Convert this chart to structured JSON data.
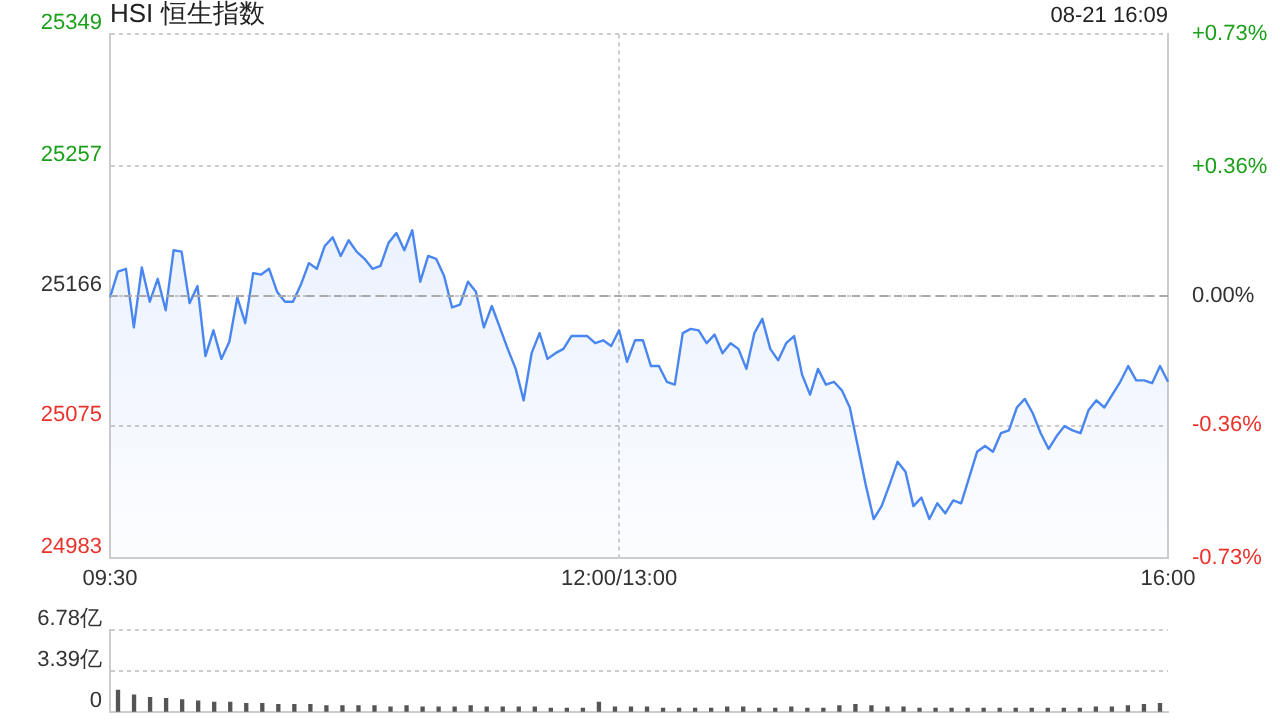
{
  "chart_data": [
    {
      "type": "area",
      "title": "HSI 恒生指数",
      "subtitle": "08-21 16:09",
      "categories": [
        "09:30",
        null,
        null,
        null,
        null,
        null,
        null,
        null,
        null,
        null,
        null,
        null,
        null,
        null,
        null,
        null,
        null,
        null,
        null,
        null,
        null,
        null,
        null,
        null,
        null,
        null,
        null,
        null,
        null,
        null,
        null,
        null,
        null,
        null,
        null,
        null,
        null,
        null,
        null,
        null,
        null,
        null,
        null,
        null,
        null,
        null,
        null,
        null,
        null,
        null,
        null,
        null,
        null,
        null,
        null,
        null,
        null,
        null,
        null,
        null,
        null,
        null,
        null,
        null,
        "12:00/13:00",
        null,
        null,
        null,
        null,
        null,
        null,
        null,
        null,
        null,
        null,
        null,
        null,
        null,
        null,
        null,
        null,
        null,
        null,
        null,
        null,
        null,
        null,
        null,
        null,
        null,
        null,
        null,
        null,
        null,
        null,
        null,
        null,
        null,
        null,
        null,
        null,
        null,
        null,
        null,
        null,
        null,
        null,
        null,
        null,
        null,
        null,
        null,
        null,
        null,
        null,
        null,
        null,
        null,
        null,
        null,
        null,
        null,
        null,
        null,
        null,
        null,
        null,
        null,
        null,
        null,
        null,
        null,
        null,
        "16:00"
      ],
      "series": [
        {
          "color": "#4a86f0",
          "values": [
            25165,
            25183,
            25185,
            25144,
            25186,
            25162,
            25178,
            25156,
            25198,
            25197,
            25161,
            25173,
            25124,
            25142,
            25122,
            25134,
            25165,
            25147,
            25182,
            25181,
            25185,
            25169,
            25162,
            25162,
            25174,
            25189,
            25185,
            25201,
            25207,
            25194,
            25205,
            25197,
            25192,
            25185,
            25187,
            25203,
            25210,
            25198,
            25212,
            25176,
            25194,
            25192,
            25180,
            25158,
            25160,
            25176,
            25169,
            25144,
            25159,
            25144,
            25129,
            25115,
            25093,
            25126,
            25140,
            25122,
            25126,
            25129,
            25138,
            25138,
            25138,
            25133,
            25135,
            25131,
            25142,
            25120,
            25135,
            25135,
            25117,
            25117,
            25106,
            25104,
            25140,
            25143,
            25142,
            25133,
            25139,
            25126,
            25133,
            25129,
            25115,
            25140,
            25150,
            25129,
            25121,
            25133,
            25138,
            25111,
            25097,
            25115,
            25104,
            25106,
            25100,
            25088,
            25061,
            25034,
            25010,
            25019,
            25034,
            25050,
            25043,
            25019,
            25025,
            25010,
            25021,
            25014,
            25023,
            25021,
            25039,
            25057,
            25061,
            25057,
            25070,
            25072,
            25088,
            25094,
            25084,
            25070,
            25059,
            25068,
            25075,
            25072,
            25070,
            25086,
            25093,
            25088,
            25097,
            25106,
            25117,
            25107,
            25107,
            25105,
            25117,
            25106
          ]
        }
      ],
      "ylim": [
        24983,
        25349
      ],
      "yticks": [
        24983,
        25075,
        25166,
        25257,
        25349
      ],
      "y2lim": [
        -0.73,
        0.73
      ],
      "y2ticks": [
        {
          "value": -0.73,
          "label": "-0.73%"
        },
        {
          "value": -0.36,
          "label": "-0.36%"
        },
        {
          "value": 0,
          "label": "0.00%"
        },
        {
          "value": 0.36,
          "label": "+0.36%"
        },
        {
          "value": 0.73,
          "label": "+0.73%"
        }
      ],
      "ref_lines": [
        {
          "axis": "y",
          "value": 25166,
          "color": "#aaaaaa",
          "line_style": "dashed"
        }
      ],
      "grid": true
    },
    {
      "type": "bar",
      "color": "#555555",
      "categories": [
        null,
        null,
        null,
        null,
        null,
        null,
        null,
        null,
        null,
        null,
        null,
        null,
        null,
        null,
        null,
        null,
        null,
        null,
        null,
        null,
        null,
        null,
        null,
        null,
        null,
        null,
        null,
        null,
        null,
        null,
        null,
        null,
        null,
        null,
        null,
        null,
        null,
        null,
        null,
        null,
        null,
        null,
        null,
        null,
        null,
        null,
        null,
        null,
        null,
        null,
        null,
        null,
        null,
        null,
        null,
        null,
        null,
        null,
        null,
        null,
        null,
        null,
        null,
        null,
        null,
        null
      ],
      "values": [
        1.8,
        1.4,
        1.2,
        1.1,
        1.0,
        0.9,
        0.8,
        0.8,
        0.7,
        0.7,
        0.6,
        0.6,
        0.6,
        0.5,
        0.5,
        0.5,
        0.5,
        0.4,
        0.5,
        0.4,
        0.4,
        0.4,
        0.5,
        0.4,
        0.4,
        0.4,
        0.4,
        0.3,
        0.3,
        0.3,
        0.8,
        0.4,
        0.4,
        0.4,
        0.3,
        0.3,
        0.3,
        0.3,
        0.4,
        0.4,
        0.3,
        0.3,
        0.4,
        0.3,
        0.3,
        0.5,
        0.6,
        0.5,
        0.4,
        0.4,
        0.3,
        0.3,
        0.3,
        0.3,
        0.3,
        0.3,
        0.3,
        0.3,
        0.3,
        0.3,
        0.3,
        0.4,
        0.4,
        0.5,
        0.6,
        0.7
      ],
      "ylim": [
        0,
        6.78
      ],
      "yticks": [
        0,
        {
          "value": 3.39,
          "label": "3.39亿"
        },
        {
          "value": 6.78,
          "label": "6.78亿"
        }
      ],
      "grid": "y",
      "tick_labels": "y"
    }
  ]
}
